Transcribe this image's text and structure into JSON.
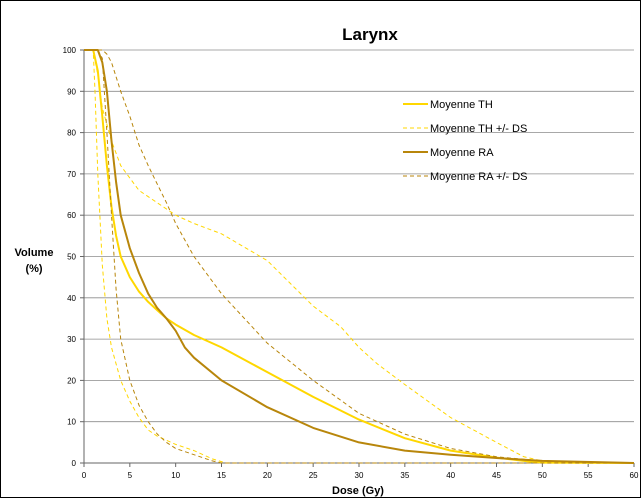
{
  "chart_data": {
    "type": "line",
    "title": "Larynx",
    "xlabel": "Dose (Gy)",
    "ylabel_line1": "Volume",
    "ylabel_line2": "(%)",
    "xlim": [
      0,
      60
    ],
    "ylim": [
      0,
      100
    ],
    "x_ticks": [
      "0",
      "5",
      "10",
      "15",
      "20",
      "25",
      "30",
      "35",
      "40",
      "45",
      "50",
      "55",
      "60"
    ],
    "y_ticks": [
      "0",
      "10",
      "20",
      "30",
      "40",
      "50",
      "60",
      "70",
      "80",
      "90",
      "100"
    ],
    "grid": "horizontal",
    "legend_position": "top-right",
    "series": [
      {
        "name": "Moyenne TH",
        "color": "#FFD700",
        "style": "solid",
        "points": [
          [
            0,
            100
          ],
          [
            1,
            100
          ],
          [
            1.5,
            95
          ],
          [
            2,
            84
          ],
          [
            2.5,
            72
          ],
          [
            3,
            62
          ],
          [
            3.5,
            55
          ],
          [
            4,
            50
          ],
          [
            5,
            45
          ],
          [
            6,
            41.5
          ],
          [
            7,
            39
          ],
          [
            8,
            37
          ],
          [
            9,
            35
          ],
          [
            10,
            33.5
          ],
          [
            12,
            31
          ],
          [
            15,
            28
          ],
          [
            20,
            22
          ],
          [
            25,
            16
          ],
          [
            30,
            10.5
          ],
          [
            35,
            6
          ],
          [
            40,
            3
          ],
          [
            45,
            1.3
          ],
          [
            48,
            0.5
          ],
          [
            50,
            0.1
          ],
          [
            60,
            0
          ]
        ]
      },
      {
        "name": "Moyenne TH +/- DS",
        "color": "#FFD700",
        "style": "dashed",
        "points": [
          [
            0,
            100
          ],
          [
            1,
            100
          ],
          [
            1.5,
            94
          ],
          [
            2,
            86
          ],
          [
            3,
            78
          ],
          [
            4,
            72
          ],
          [
            5,
            69
          ],
          [
            6,
            66
          ],
          [
            8,
            63
          ],
          [
            10,
            60
          ],
          [
            12,
            58
          ],
          [
            15,
            55.5
          ],
          [
            20,
            49
          ],
          [
            25,
            38
          ],
          [
            28,
            33
          ],
          [
            30,
            28
          ],
          [
            32,
            24
          ],
          [
            35,
            19
          ],
          [
            40,
            11
          ],
          [
            45,
            5
          ],
          [
            48,
            1.5
          ],
          [
            50,
            0.5
          ],
          [
            60,
            0
          ]
        ]
      },
      {
        "name": "",
        "color": "#FFD700",
        "style": "dashed",
        "points": [
          [
            0,
            100
          ],
          [
            1,
            100
          ],
          [
            1.2,
            90
          ],
          [
            1.5,
            70
          ],
          [
            2,
            48
          ],
          [
            2.5,
            35
          ],
          [
            3,
            28
          ],
          [
            4,
            20
          ],
          [
            5,
            15
          ],
          [
            6,
            11
          ],
          [
            7,
            8
          ],
          [
            8,
            6.5
          ],
          [
            10,
            4.5
          ],
          [
            12,
            3
          ],
          [
            14,
            1
          ],
          [
            15.5,
            0
          ],
          [
            60,
            0
          ]
        ]
      },
      {
        "name": "Moyenne RA",
        "color": "#B8860B",
        "style": "solid",
        "points": [
          [
            0,
            100
          ],
          [
            1.5,
            100
          ],
          [
            2,
            97
          ],
          [
            2.5,
            90
          ],
          [
            3,
            78
          ],
          [
            3.5,
            68
          ],
          [
            4,
            60
          ],
          [
            5,
            52
          ],
          [
            6,
            46
          ],
          [
            7,
            41
          ],
          [
            8,
            37.5
          ],
          [
            9,
            35
          ],
          [
            10,
            32
          ],
          [
            11,
            28
          ],
          [
            12,
            25.5
          ],
          [
            15,
            20
          ],
          [
            20,
            13.5
          ],
          [
            25,
            8.5
          ],
          [
            30,
            5
          ],
          [
            35,
            3
          ],
          [
            40,
            2
          ],
          [
            45,
            1.2
          ],
          [
            50,
            0.5
          ],
          [
            60,
            0
          ]
        ]
      },
      {
        "name": "Moyenne RA +/- DS",
        "color": "#B8860B",
        "style": "dashed",
        "points": [
          [
            0,
            100
          ],
          [
            2,
            100
          ],
          [
            2.5,
            99
          ],
          [
            3,
            97
          ],
          [
            4,
            90
          ],
          [
            5,
            84
          ],
          [
            6,
            77
          ],
          [
            7,
            72
          ],
          [
            8,
            67.5
          ],
          [
            9,
            63
          ],
          [
            10,
            58
          ],
          [
            12,
            50
          ],
          [
            15,
            41
          ],
          [
            20,
            29
          ],
          [
            25,
            20
          ],
          [
            30,
            12
          ],
          [
            35,
            7
          ],
          [
            40,
            3.5
          ],
          [
            45,
            1.5
          ],
          [
            50,
            0.5
          ],
          [
            60,
            0
          ]
        ]
      },
      {
        "name": "",
        "color": "#B8860B",
        "style": "dashed",
        "points": [
          [
            0,
            100
          ],
          [
            1.5,
            100
          ],
          [
            2,
            98
          ],
          [
            2.5,
            80
          ],
          [
            3,
            60
          ],
          [
            3.5,
            42
          ],
          [
            4,
            30
          ],
          [
            5,
            20
          ],
          [
            6,
            14
          ],
          [
            7,
            10
          ],
          [
            8,
            7
          ],
          [
            9,
            5
          ],
          [
            10,
            3.5
          ],
          [
            12,
            2
          ],
          [
            14,
            0.5
          ],
          [
            15,
            0
          ],
          [
            60,
            0
          ]
        ]
      }
    ]
  }
}
